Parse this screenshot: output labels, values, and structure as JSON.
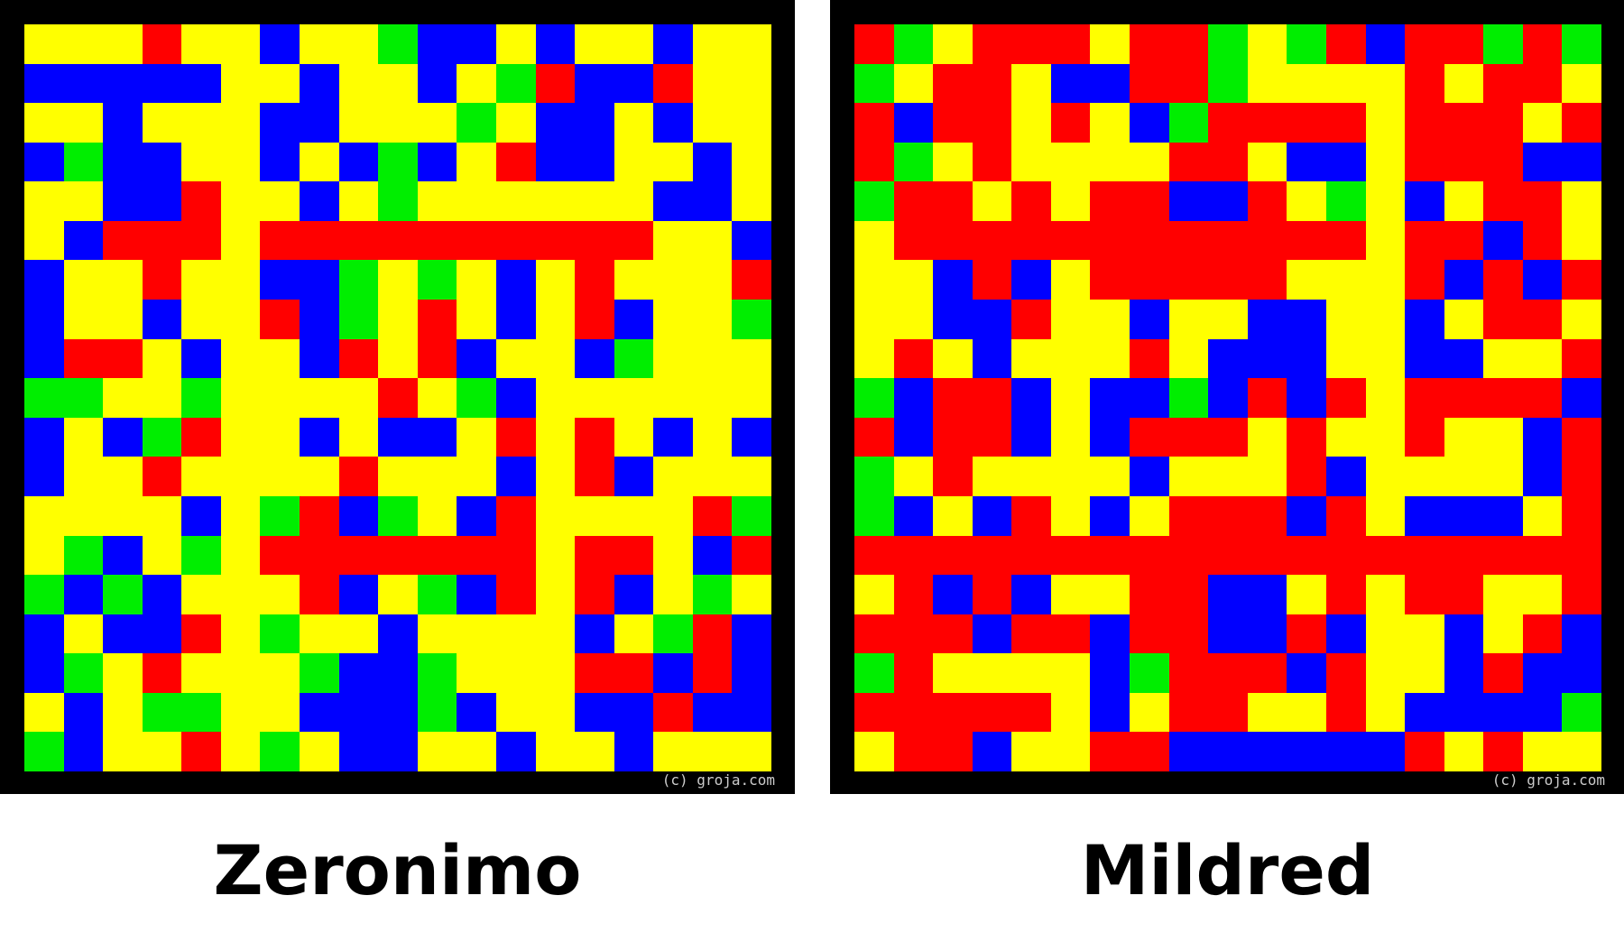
{
  "palette": {
    "Y": "#ffff00",
    "R": "#ff0000",
    "B": "#0000ff",
    "G": "#00ee00"
  },
  "panels": [
    {
      "caption": "Zeronimo",
      "copyright": "(c) groja.com",
      "rows": [
        "YYYRYYBYYGBBYBYYBYY",
        "BBBBBYYBYYBYGRBBRYY",
        "YYBYYYBBYYYGYBBYBYY",
        "BGBBYYBYBGBYRBBYYBY",
        "YYBBRYYBYGYYYYYYBBY",
        "YBRRRYRRRRRRRRRRYYB",
        "BYYRYYBBGYGYBYRYYYR",
        "BYYBYYRBGYRYBYRBYYG",
        "BRRYBYYBRYRBYYBGYYY",
        "GGYYGYYYYRYGBYYYYYY",
        "BYBGRYYBYBBYRYRYBYB",
        "BYYRYYYYRYYYBYRBYYY",
        "YYYYBYGRBGYBRYYYYRG",
        "YGBYGYRRRRRRRYRRYBR",
        "GBGBYYYRBYGBRYRBYGY",
        "BYBBRYGYYBYYYYBYGRB",
        "BGYRYYYGBBGYYYRRBRB",
        "YBYGGYYBBBGBYYBBRBB",
        "GBYYRYGYBBYYBYYBYYY"
      ]
    },
    {
      "caption": "Mildred",
      "copyright": "(c) groja.com",
      "rows": [
        "RGYRRRYRRGYGRBRRGRG",
        "GYRRYBBRRGYYYYRYRRY",
        "RBRRYRYBGRRRRYRRRYR",
        "RGYRYYYYRRYBBYRRRBB",
        "GRRYRYRRBBRYGYBYRRY",
        "YRRRRRRRRRRRRYRRBRY",
        "YYBRBYRRRRRYYYRBRBR",
        "YYBBRYYBYYBBYYBYRRY",
        "YRYBYYYRYBBBYYBBYYR",
        "GBRRBYBBGBRBRYRRRRB",
        "RBRRBYBRRRYRYYRYYBR",
        "GYRYYYYBYYYRBYYYYBR",
        "GBYBRYBYRRRBRYBBBYR",
        "RRRRRRRRRRRRRRRRRRR",
        "YRBRBYYRRBBYRYRRYYR",
        "RRRBRRBRRBBRBYYBYRB",
        "GRYYYYBGRRRBRYYBRBB",
        "RRRRRYBYRRYYRYBBBBG",
        "YRRBYYRRBBBBBBRYRYY"
      ]
    }
  ]
}
